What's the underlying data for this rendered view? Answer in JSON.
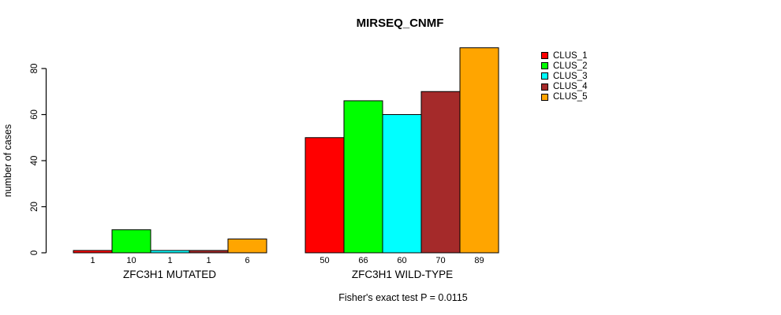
{
  "title": "MIRSEQ_CNMF",
  "footer": {
    "caption": "Fisher's exact test P = 0.0115"
  },
  "chart_data": {
    "type": "bar",
    "title": "MIRSEQ_CNMF",
    "ylabel": "number of cases",
    "xlabel": "",
    "ylim": [
      0,
      80
    ],
    "yticks": [
      0,
      20,
      40,
      60,
      80
    ],
    "grid": false,
    "legend_position": "right",
    "bar_value_labels_shown": true,
    "groups": [
      {
        "label": "ZFC3H1 MUTATED",
        "values": [
          1,
          10,
          1,
          1,
          6
        ]
      },
      {
        "label": "ZFC3H1 WILD-TYPE",
        "values": [
          50,
          66,
          60,
          70,
          89
        ]
      }
    ],
    "series": [
      {
        "name": "CLUS_1",
        "color": "#ff0000"
      },
      {
        "name": "CLUS_2",
        "color": "#00ff00"
      },
      {
        "name": "CLUS_3",
        "color": "#00ffff"
      },
      {
        "name": "CLUS_4",
        "color": "#a52a2a"
      },
      {
        "name": "CLUS_5",
        "color": "#ffa500"
      }
    ],
    "annotation": "Fisher's exact test P = 0.0115"
  }
}
